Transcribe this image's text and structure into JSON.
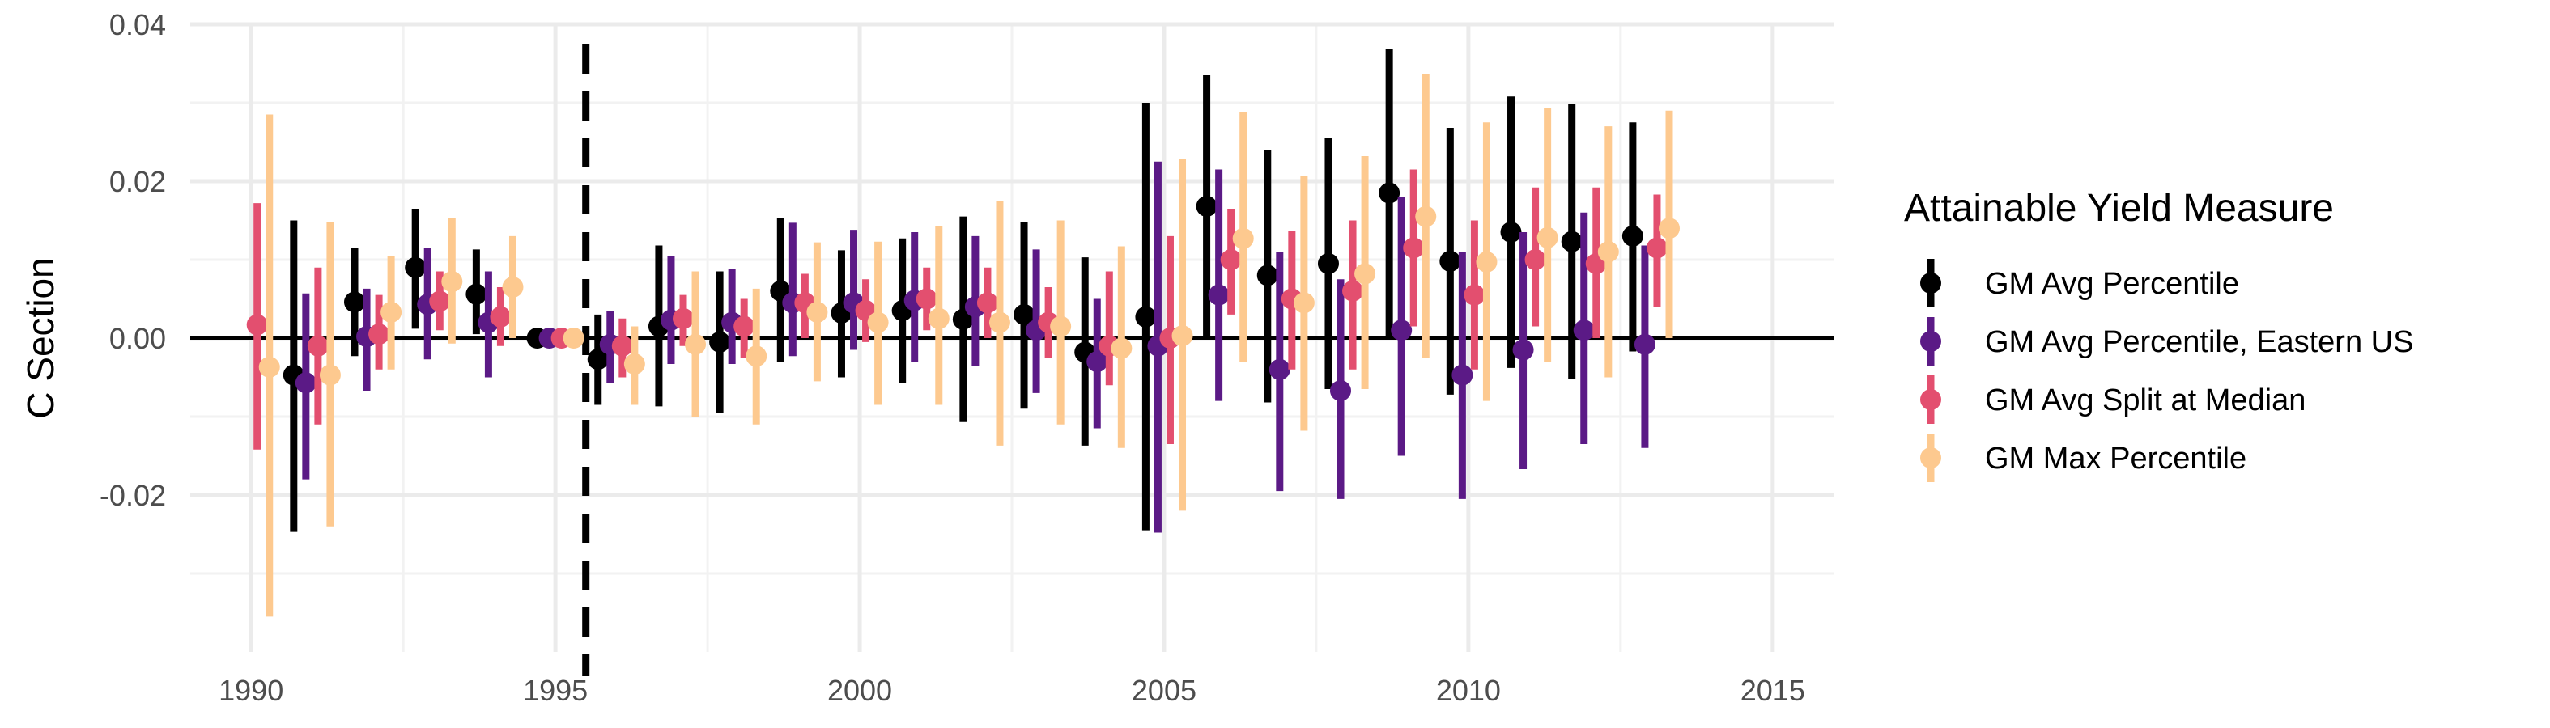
{
  "chart_data": {
    "type": "scatter",
    "title": "",
    "xlabel": "",
    "ylabel": "C Section",
    "xlim": [
      1989,
      2016
    ],
    "ylim": [
      -0.04,
      0.04
    ],
    "x_ticks": [
      1990,
      1995,
      2000,
      2005,
      2010,
      2015
    ],
    "y_ticks": [
      -0.02,
      0.0,
      0.02,
      0.04
    ],
    "x_tick_labels": [
      "1990",
      "1995",
      "2000",
      "2005",
      "2010",
      "2015"
    ],
    "y_tick_labels": [
      "-0.02",
      "0.00",
      "0.02",
      "0.04"
    ],
    "reference_hline": 0,
    "reference_vline": 1995.5,
    "grid": true,
    "legend_placement": "right",
    "legend_title": "Attainable Yield Measure",
    "series": [
      {
        "name": "GM Avg Percentile",
        "color": "#000000",
        "offset": -0.3,
        "points": [
          {
            "x": 1991,
            "y": -0.0047,
            "lo": -0.0247,
            "hi": 0.015
          },
          {
            "x": 1992,
            "y": 0.0046,
            "lo": -0.0023,
            "hi": 0.0115
          },
          {
            "x": 1993,
            "y": 0.009,
            "lo": 0.0012,
            "hi": 0.0165
          },
          {
            "x": 1994,
            "y": 0.0056,
            "lo": 0.0005,
            "hi": 0.0113
          },
          {
            "x": 1995,
            "y": 0.0,
            "lo": 0.0,
            "hi": 0.0
          },
          {
            "x": 1996,
            "y": -0.0027,
            "lo": -0.0085,
            "hi": 0.003
          },
          {
            "x": 1997,
            "y": 0.0015,
            "lo": -0.0087,
            "hi": 0.0118
          },
          {
            "x": 1998,
            "y": -0.0005,
            "lo": -0.0095,
            "hi": 0.0085
          },
          {
            "x": 1999,
            "y": 0.006,
            "lo": -0.003,
            "hi": 0.0153
          },
          {
            "x": 2000,
            "y": 0.0032,
            "lo": -0.005,
            "hi": 0.0112
          },
          {
            "x": 2001,
            "y": 0.0035,
            "lo": -0.0057,
            "hi": 0.0127
          },
          {
            "x": 2002,
            "y": 0.0024,
            "lo": -0.0107,
            "hi": 0.0155
          },
          {
            "x": 2003,
            "y": 0.003,
            "lo": -0.009,
            "hi": 0.0148
          },
          {
            "x": 2004,
            "y": -0.0018,
            "lo": -0.0137,
            "hi": 0.0103
          },
          {
            "x": 2005,
            "y": 0.0027,
            "lo": -0.0245,
            "hi": 0.03
          },
          {
            "x": 2006,
            "y": 0.0168,
            "lo": 0.0,
            "hi": 0.0335
          },
          {
            "x": 2007,
            "y": 0.008,
            "lo": -0.0082,
            "hi": 0.024
          },
          {
            "x": 2008,
            "y": 0.0095,
            "lo": -0.0065,
            "hi": 0.0255
          },
          {
            "x": 2009,
            "y": 0.0185,
            "lo": 0.0,
            "hi": 0.0368
          },
          {
            "x": 2010,
            "y": 0.0098,
            "lo": -0.0072,
            "hi": 0.0268
          },
          {
            "x": 2011,
            "y": 0.0135,
            "lo": -0.0038,
            "hi": 0.0308
          },
          {
            "x": 2012,
            "y": 0.0123,
            "lo": -0.0052,
            "hi": 0.0298
          },
          {
            "x": 2013,
            "y": 0.013,
            "lo": -0.0017,
            "hi": 0.0275
          }
        ]
      },
      {
        "name": "GM Avg Percentile, Eastern US",
        "color": "#5b1a86",
        "offset": -0.1,
        "points": [
          {
            "x": 1991,
            "y": -0.0057,
            "lo": -0.018,
            "hi": 0.0057
          },
          {
            "x": 1992,
            "y": 0.0002,
            "lo": -0.0067,
            "hi": 0.0063
          },
          {
            "x": 1993,
            "y": 0.0043,
            "lo": -0.0027,
            "hi": 0.0115
          },
          {
            "x": 1994,
            "y": 0.002,
            "lo": -0.005,
            "hi": 0.0085
          },
          {
            "x": 1995,
            "y": 0.0,
            "lo": 0.0,
            "hi": 0.0
          },
          {
            "x": 1996,
            "y": -0.0008,
            "lo": -0.0057,
            "hi": 0.0035
          },
          {
            "x": 1997,
            "y": 0.0023,
            "lo": -0.0033,
            "hi": 0.0105
          },
          {
            "x": 1998,
            "y": 0.002,
            "lo": -0.0033,
            "hi": 0.0088
          },
          {
            "x": 1999,
            "y": 0.0045,
            "lo": -0.0023,
            "hi": 0.0147
          },
          {
            "x": 2000,
            "y": 0.0045,
            "lo": -0.0015,
            "hi": 0.0138
          },
          {
            "x": 2001,
            "y": 0.0048,
            "lo": -0.003,
            "hi": 0.0135
          },
          {
            "x": 2002,
            "y": 0.004,
            "lo": -0.0035,
            "hi": 0.013
          },
          {
            "x": 2003,
            "y": 0.001,
            "lo": -0.007,
            "hi": 0.0113
          },
          {
            "x": 2004,
            "y": -0.003,
            "lo": -0.0115,
            "hi": 0.005
          },
          {
            "x": 2005,
            "y": -0.001,
            "lo": -0.0248,
            "hi": 0.0225
          },
          {
            "x": 2006,
            "y": 0.0055,
            "lo": -0.008,
            "hi": 0.0215
          },
          {
            "x": 2007,
            "y": -0.004,
            "lo": -0.0195,
            "hi": 0.011
          },
          {
            "x": 2008,
            "y": -0.0067,
            "lo": -0.0205,
            "hi": 0.0075
          },
          {
            "x": 2009,
            "y": 0.001,
            "lo": -0.015,
            "hi": 0.018
          },
          {
            "x": 2010,
            "y": -0.0047,
            "lo": -0.0205,
            "hi": 0.011
          },
          {
            "x": 2011,
            "y": -0.0015,
            "lo": -0.0167,
            "hi": 0.0135
          },
          {
            "x": 2012,
            "y": 0.001,
            "lo": -0.0135,
            "hi": 0.016
          },
          {
            "x": 2013,
            "y": -0.0008,
            "lo": -0.014,
            "hi": 0.0118
          }
        ]
      },
      {
        "name": "GM Avg Split at Median",
        "color": "#e34f6f",
        "offset": 0.1,
        "points": [
          {
            "x": 1990,
            "y": 0.0017,
            "lo": -0.0142,
            "hi": 0.0172
          },
          {
            "x": 1991,
            "y": -0.001,
            "lo": -0.011,
            "hi": 0.009
          },
          {
            "x": 1992,
            "y": 0.0005,
            "lo": -0.004,
            "hi": 0.0055
          },
          {
            "x": 1993,
            "y": 0.0047,
            "lo": 0.001,
            "hi": 0.0085
          },
          {
            "x": 1994,
            "y": 0.0027,
            "lo": -0.001,
            "hi": 0.0065
          },
          {
            "x": 1995,
            "y": 0.0,
            "lo": 0.0,
            "hi": 0.0
          },
          {
            "x": 1996,
            "y": -0.001,
            "lo": -0.005,
            "hi": 0.0025
          },
          {
            "x": 1997,
            "y": 0.0025,
            "lo": -0.001,
            "hi": 0.0055
          },
          {
            "x": 1998,
            "y": 0.0015,
            "lo": -0.0025,
            "hi": 0.005
          },
          {
            "x": 1999,
            "y": 0.0045,
            "lo": 0.0,
            "hi": 0.0082
          },
          {
            "x": 2000,
            "y": 0.0035,
            "lo": -0.0005,
            "hi": 0.0075
          },
          {
            "x": 2001,
            "y": 0.005,
            "lo": 0.001,
            "hi": 0.009
          },
          {
            "x": 2002,
            "y": 0.0045,
            "lo": 0.0,
            "hi": 0.009
          },
          {
            "x": 2003,
            "y": 0.002,
            "lo": -0.0025,
            "hi": 0.0065
          },
          {
            "x": 2004,
            "y": -0.001,
            "lo": -0.006,
            "hi": 0.0085
          },
          {
            "x": 2005,
            "y": 0.0,
            "lo": -0.0135,
            "hi": 0.013
          },
          {
            "x": 2006,
            "y": 0.01,
            "lo": 0.003,
            "hi": 0.0165
          },
          {
            "x": 2007,
            "y": 0.005,
            "lo": -0.004,
            "hi": 0.0137
          },
          {
            "x": 2008,
            "y": 0.006,
            "lo": -0.004,
            "hi": 0.015
          },
          {
            "x": 2009,
            "y": 0.0115,
            "lo": 0.0015,
            "hi": 0.0215
          },
          {
            "x": 2010,
            "y": 0.0055,
            "lo": -0.004,
            "hi": 0.015
          },
          {
            "x": 2011,
            "y": 0.01,
            "lo": 0.0015,
            "hi": 0.0192
          },
          {
            "x": 2012,
            "y": 0.0095,
            "lo": 0.0,
            "hi": 0.0192
          },
          {
            "x": 2013,
            "y": 0.0115,
            "lo": 0.004,
            "hi": 0.0183
          }
        ]
      },
      {
        "name": "GM Max Percentile",
        "color": "#fdc98f",
        "offset": 0.3,
        "points": [
          {
            "x": 1990,
            "y": -0.0037,
            "lo": -0.0355,
            "hi": 0.0285
          },
          {
            "x": 1991,
            "y": -0.0047,
            "lo": -0.024,
            "hi": 0.0148
          },
          {
            "x": 1992,
            "y": 0.0033,
            "lo": -0.004,
            "hi": 0.0105
          },
          {
            "x": 1993,
            "y": 0.0072,
            "lo": -0.0007,
            "hi": 0.0153
          },
          {
            "x": 1994,
            "y": 0.0065,
            "lo": 0.0,
            "hi": 0.013
          },
          {
            "x": 1995,
            "y": 0.0,
            "lo": 0.0,
            "hi": 0.0
          },
          {
            "x": 1996,
            "y": -0.0033,
            "lo": -0.0085,
            "hi": 0.0015
          },
          {
            "x": 1997,
            "y": -0.0008,
            "lo": -0.01,
            "hi": 0.0085
          },
          {
            "x": 1998,
            "y": -0.0023,
            "lo": -0.011,
            "hi": 0.0063
          },
          {
            "x": 1999,
            "y": 0.0033,
            "lo": -0.0055,
            "hi": 0.0122
          },
          {
            "x": 2000,
            "y": 0.002,
            "lo": -0.0085,
            "hi": 0.0123
          },
          {
            "x": 2001,
            "y": 0.0025,
            "lo": -0.0085,
            "hi": 0.0143
          },
          {
            "x": 2002,
            "y": 0.002,
            "lo": -0.0137,
            "hi": 0.0175
          },
          {
            "x": 2003,
            "y": 0.0015,
            "lo": -0.011,
            "hi": 0.015
          },
          {
            "x": 2004,
            "y": -0.0013,
            "lo": -0.014,
            "hi": 0.0117
          },
          {
            "x": 2005,
            "y": 0.0003,
            "lo": -0.022,
            "hi": 0.0228
          },
          {
            "x": 2006,
            "y": 0.0127,
            "lo": -0.003,
            "hi": 0.0288
          },
          {
            "x": 2007,
            "y": 0.0045,
            "lo": -0.0118,
            "hi": 0.0207
          },
          {
            "x": 2008,
            "y": 0.0082,
            "lo": -0.0065,
            "hi": 0.0232
          },
          {
            "x": 2009,
            "y": 0.0155,
            "lo": -0.0025,
            "hi": 0.0337
          },
          {
            "x": 2010,
            "y": 0.0097,
            "lo": -0.008,
            "hi": 0.0275
          },
          {
            "x": 2011,
            "y": 0.0128,
            "lo": -0.003,
            "hi": 0.0293
          },
          {
            "x": 2012,
            "y": 0.011,
            "lo": -0.005,
            "hi": 0.027
          },
          {
            "x": 2013,
            "y": 0.014,
            "lo": 0.0,
            "hi": 0.029
          }
        ]
      }
    ]
  }
}
